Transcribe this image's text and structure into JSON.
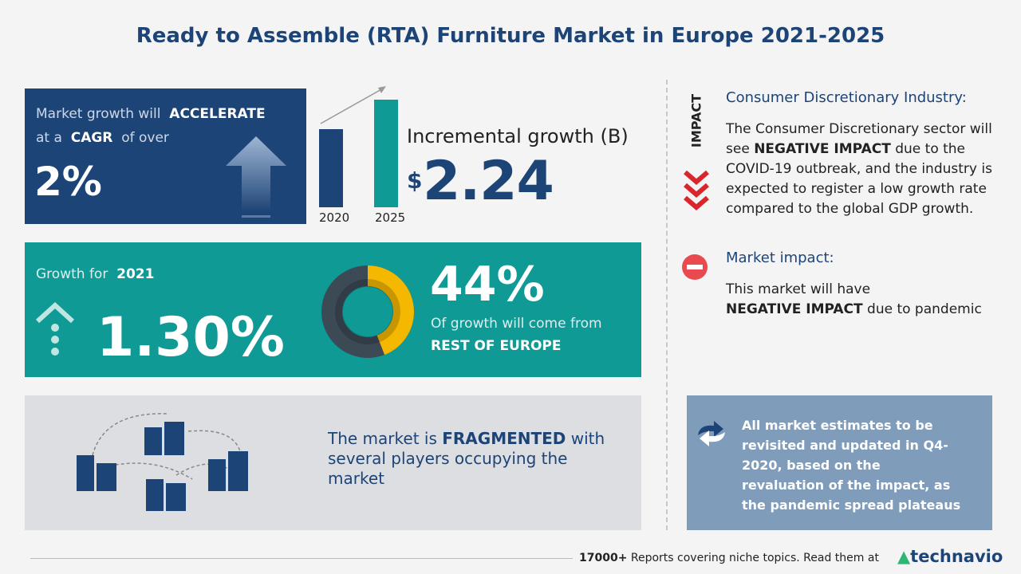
{
  "header": {
    "title": "Ready to Assemble (RTA) Furniture Market in Europe 2021-2025"
  },
  "cagr_panel": {
    "text1": "Market growth will",
    "bold1": "ACCELERATE",
    "text2": "at a",
    "bold2": "CAGR",
    "text3": "of over",
    "value": "2%"
  },
  "incremental_panel": {
    "years": [
      "2020",
      "2025"
    ],
    "label": "Incremental growth (B)",
    "currency": "$",
    "value": "2.24"
  },
  "growth_panel": {
    "label": "Growth for",
    "year": "2021",
    "value": "1.30%"
  },
  "region_panel": {
    "share": {
      "value": 44,
      "label": "44%"
    },
    "text": "Of growth will come from",
    "region": "REST OF EUROPE"
  },
  "fragment_panel": {
    "text1": "The market is",
    "bold": "FRAGMENTED",
    "text2": "with several players occupying the market"
  },
  "impact": {
    "vertical_label": "IMPACT",
    "industry_title": "Consumer Discretionary Industry:",
    "industry_text1": "The Consumer Discretionary sector will see",
    "industry_bold": "NEGATIVE IMPACT",
    "industry_text2": "due to the COVID-19 outbreak, and the industry is expected to register a low growth rate compared to the global GDP growth.",
    "market_title": "Market impact:",
    "market_text1": "This market will have",
    "market_bold": "NEGATIVE IMPACT",
    "market_text2": "due to pandemic"
  },
  "note": {
    "text": "All market estimates to be revisited and updated in Q4-2020, based on the revaluation of the impact, as the pandemic spread plateaus"
  },
  "footer": {
    "count": "17000+",
    "text": "Reports covering niche topics. Read them at",
    "brand": "technavio"
  }
}
